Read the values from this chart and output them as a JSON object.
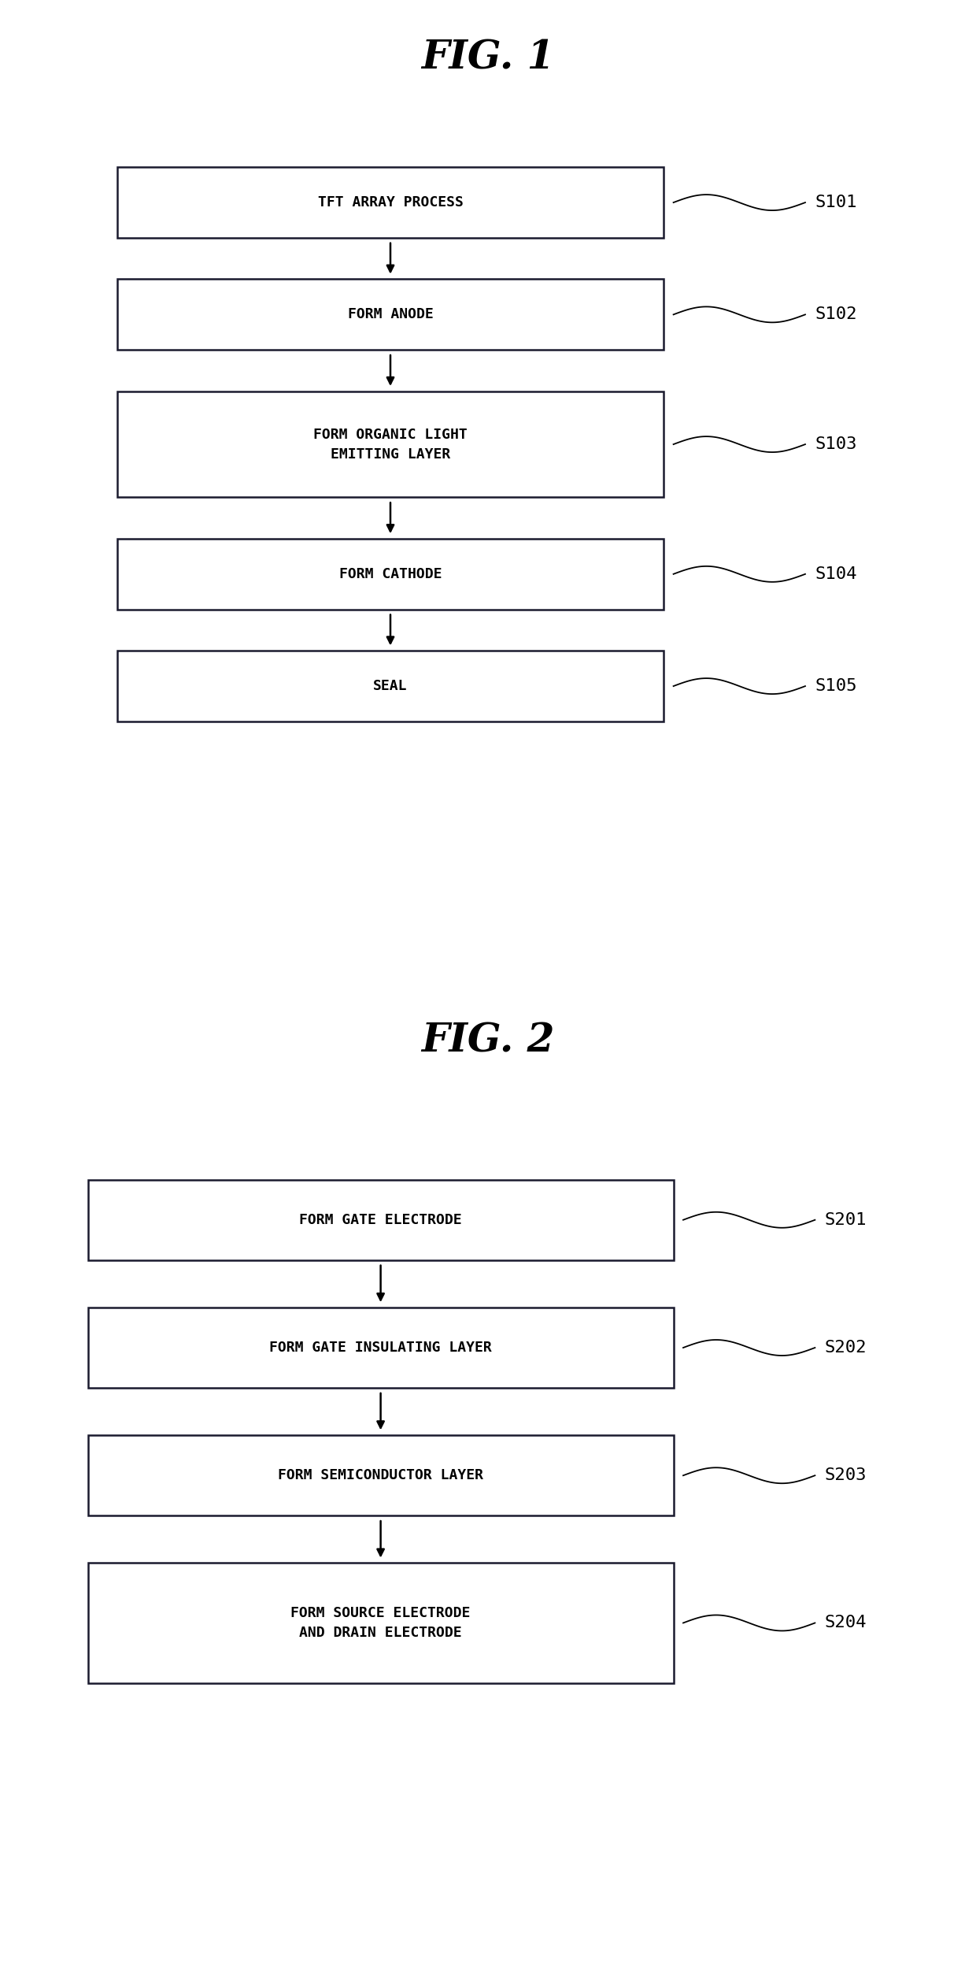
{
  "fig1_title": "FIG. 1",
  "fig2_title": "FIG. 2",
  "fig1_steps": [
    {
      "label": "TFT ARRAY PROCESS",
      "step": "S101",
      "lines": 1
    },
    {
      "label": "FORM ANODE",
      "step": "S102",
      "lines": 1
    },
    {
      "label": "FORM ORGANIC LIGHT\nEMITTING LAYER",
      "step": "S103",
      "lines": 2
    },
    {
      "label": "FORM CATHODE",
      "step": "S104",
      "lines": 1
    },
    {
      "label": "SEAL",
      "step": "S105",
      "lines": 1
    }
  ],
  "fig2_steps": [
    {
      "label": "FORM GATE ELECTRODE",
      "step": "S201",
      "lines": 1
    },
    {
      "label": "FORM GATE INSULATING LAYER",
      "step": "S202",
      "lines": 1
    },
    {
      "label": "FORM SEMICONDUCTOR LAYER",
      "step": "S203",
      "lines": 1
    },
    {
      "label": "FORM SOURCE ELECTRODE\nAND DRAIN ELECTRODE",
      "step": "S204",
      "lines": 2
    }
  ],
  "bg_color": "#ffffff",
  "box_edge_color": "#1a1a2e",
  "text_color": "#000000",
  "arrow_color": "#000000",
  "box_fill": "#ffffff",
  "title_fontsize": 36,
  "label_fontsize": 13,
  "step_fontsize": 16
}
